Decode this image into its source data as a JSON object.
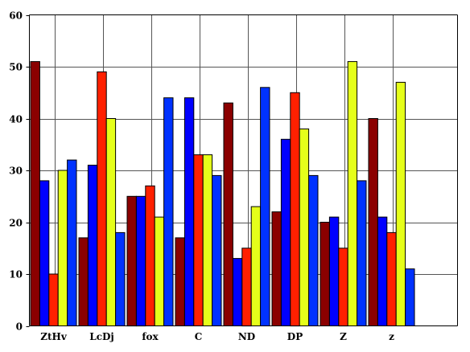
{
  "chart_data": {
    "type": "bar",
    "title": "",
    "xlabel": "",
    "ylabel": "",
    "categories": [
      "ZtHv",
      "LcDj",
      "fox",
      "C",
      "ND",
      "DP",
      "Z",
      "z"
    ],
    "ylim": [
      0,
      60
    ],
    "yticks": [
      "0",
      "10",
      "20",
      "30",
      "40",
      "50",
      "60"
    ],
    "grid": true,
    "legend": "none",
    "series": [
      {
        "color": "#8b0000",
        "values": [
          51,
          17,
          25,
          17,
          43,
          22,
          20,
          40
        ]
      },
      {
        "color": "#0000ff",
        "values": [
          28,
          31,
          25,
          44,
          13,
          36,
          21,
          21
        ]
      },
      {
        "color": "#ff2000",
        "values": [
          10,
          49,
          27,
          33,
          15,
          45,
          15,
          18
        ]
      },
      {
        "color": "#e5ff1a",
        "values": [
          30,
          40,
          21,
          33,
          23,
          38,
          51,
          47
        ]
      },
      {
        "color": "#0032ff",
        "values": [
          32,
          18,
          44,
          29,
          46,
          29,
          28,
          11
        ]
      }
    ]
  }
}
